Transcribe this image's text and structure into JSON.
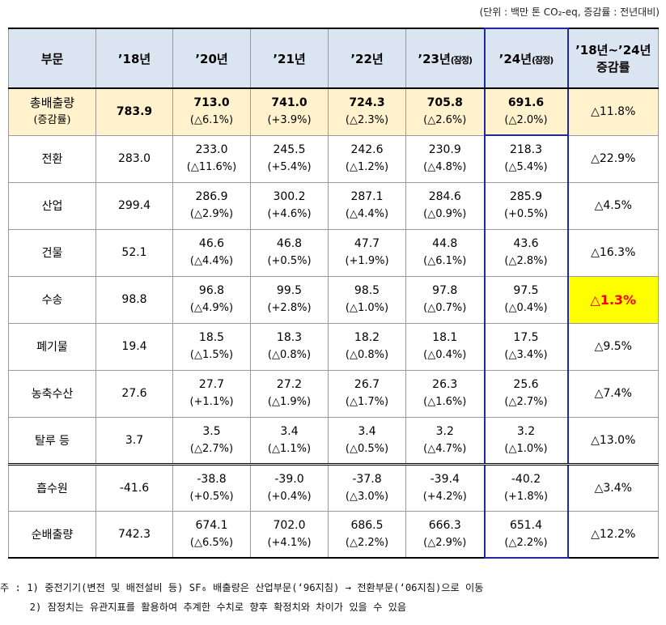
{
  "unit_note": "(단위 : 백만 톤 CO₂-eq, 증감률 : 전년대비)",
  "headers": {
    "sector": "부문",
    "y18": "’18년",
    "y20": "’20년",
    "y21": "’21년",
    "y22": "’22년",
    "y23_main": "’23년",
    "y23_tag": "(잠정)",
    "y24_main": "’24년",
    "y24_tag": "(잠정)",
    "rate_line1": "’18년~’24년",
    "rate_line2": "증감률"
  },
  "total": {
    "name": "총배출량",
    "name_sub": "(증감률)",
    "y18": "783.9",
    "y20": "713.0",
    "c20": "(△6.1%)",
    "y21": "741.0",
    "c21": "(+3.9%)",
    "y22": "724.3",
    "c22": "(△2.3%)",
    "y23": "705.8",
    "c23": "(△2.6%)",
    "y24": "691.6",
    "c24": "(△2.0%)",
    "rate": "△11.8%"
  },
  "rows": [
    {
      "name": "전환",
      "y18": "283.0",
      "y20": "233.0",
      "c20": "(△11.6%)",
      "y21": "245.5",
      "c21": "(+5.4%)",
      "y22": "242.6",
      "c22": "(△1.2%)",
      "y23": "230.9",
      "c23": "(△4.8%)",
      "y24": "218.3",
      "c24": "(△5.4%)",
      "rate": "△22.9%"
    },
    {
      "name": "산업",
      "y18": "299.4",
      "y20": "286.9",
      "c20": "(△2.9%)",
      "y21": "300.2",
      "c21": "(+4.6%)",
      "y22": "287.1",
      "c22": "(△4.4%)",
      "y23": "284.6",
      "c23": "(△0.9%)",
      "y24": "285.9",
      "c24": "(+0.5%)",
      "rate": "△4.5%"
    },
    {
      "name": "건물",
      "y18": "52.1",
      "y20": "46.6",
      "c20": "(△4.4%)",
      "y21": "46.8",
      "c21": "(+0.5%)",
      "y22": "47.7",
      "c22": "(+1.9%)",
      "y23": "44.8",
      "c23": "(△6.1%)",
      "y24": "43.6",
      "c24": "(△2.8%)",
      "rate": "△16.3%"
    },
    {
      "name": "수송",
      "y18": "98.8",
      "y20": "96.8",
      "c20": "(△4.9%)",
      "y21": "99.5",
      "c21": "(+2.8%)",
      "y22": "98.5",
      "c22": "(△1.0%)",
      "y23": "97.8",
      "c23": "(△0.7%)",
      "y24": "97.5",
      "c24": "(△0.4%)",
      "rate": "△1.3%"
    },
    {
      "name": "폐기물",
      "y18": "19.4",
      "y20": "18.5",
      "c20": "(△1.5%)",
      "y21": "18.3",
      "c21": "(△0.8%)",
      "y22": "18.2",
      "c22": "(△0.8%)",
      "y23": "18.1",
      "c23": "(△0.4%)",
      "y24": "17.5",
      "c24": "(△3.4%)",
      "rate": "△9.5%"
    },
    {
      "name": "농축수산",
      "y18": "27.6",
      "y20": "27.7",
      "c20": "(+1.1%)",
      "y21": "27.2",
      "c21": "(△1.9%)",
      "y22": "26.7",
      "c22": "(△1.7%)",
      "y23": "26.3",
      "c23": "(△1.6%)",
      "y24": "25.6",
      "c24": "(△2.7%)",
      "rate": "△7.4%"
    },
    {
      "name": "탈루 등",
      "y18": "3.7",
      "y20": "3.5",
      "c20": "(△2.7%)",
      "y21": "3.4",
      "c21": "(△1.1%)",
      "y22": "3.4",
      "c22": "(△0.5%)",
      "y23": "3.2",
      "c23": "(△4.7%)",
      "y24": "3.2",
      "c24": "(△1.0%)",
      "rate": "△13.0%"
    },
    {
      "name": "흡수원",
      "y18": "-41.6",
      "y20": "-38.8",
      "c20": "(+0.5%)",
      "y21": "-39.0",
      "c21": "(+0.4%)",
      "y22": "-37.8",
      "c22": "(△3.0%)",
      "y23": "-39.4",
      "c23": "(+4.2%)",
      "y24": "-40.2",
      "c24": "(+1.8%)",
      "rate": "△3.4%"
    },
    {
      "name": "순배출량",
      "y18": "742.3",
      "y20": "674.1",
      "c20": "(△6.5%)",
      "y21": "702.0",
      "c21": "(+4.1%)",
      "y22": "686.5",
      "c22": "(△2.2%)",
      "y23": "666.3",
      "c23": "(△2.9%)",
      "y24": "651.4",
      "c24": "(△2.2%)",
      "rate": "△12.2%"
    }
  ],
  "highlight_color": "#ffff00",
  "highlight_text_color": "#ff0000",
  "notes": {
    "line1": "주 : 1) 중전기기(변전 및 배전설비 등) SF₆ 배출량은 산업부문(‘96지침) → 전환부문(‘06지침)으로 이동",
    "line2": "     2) 잠정치는 유관지표를 활용하여 추계한 수치로 향후 확정치와 차이가 있을 수 있음"
  }
}
